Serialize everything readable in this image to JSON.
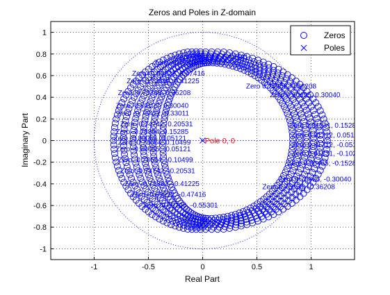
{
  "chart_data": {
    "type": "scatter",
    "title": "Zeros and Poles in Z-domain",
    "xlabel": "Real Part",
    "ylabel": "Imaginary Part",
    "xlim": [
      -1.4,
      1.4
    ],
    "ylim": [
      -1.1,
      1.1
    ],
    "xticks": [
      "-1",
      "-0.5",
      "0",
      "0.5",
      "1"
    ],
    "yticks": [
      "-1",
      "-0.8",
      "-0.6",
      "-0.4",
      "-0.2",
      "0",
      "0.2",
      "0.4",
      "0.6",
      "0.8",
      "1"
    ],
    "grid": true,
    "legend_position": "top-right",
    "legend": [
      {
        "label": "Zeros",
        "marker": "o"
      },
      {
        "label": "Poles",
        "marker": "x"
      }
    ],
    "series": [
      {
        "name": "Zeros",
        "marker": "o",
        "color": "#0000ff",
        "description": "dense band of zeros between an inner and outer ellipse-like ring",
        "ring_samples": [
          {
            "x": -0.8,
            "y": 0.0
          },
          {
            "x": -0.75,
            "y": 0.33
          },
          {
            "x": -0.6,
            "y": 0.6
          },
          {
            "x": -0.3,
            "y": 0.78
          },
          {
            "x": 0.2,
            "y": 0.82
          },
          {
            "x": 0.6,
            "y": 0.82
          },
          {
            "x": 0.9,
            "y": 0.8
          },
          {
            "x": 1.1,
            "y": 0.6
          },
          {
            "x": 1.15,
            "y": 0.0
          },
          {
            "x": 1.1,
            "y": -0.6
          },
          {
            "x": 0.9,
            "y": -0.8
          },
          {
            "x": 0.2,
            "y": -0.82
          },
          {
            "x": -0.3,
            "y": -0.78
          },
          {
            "x": -0.6,
            "y": -0.6
          },
          {
            "x": -0.75,
            "y": -0.33
          }
        ]
      },
      {
        "name": "Poles",
        "marker": "x",
        "color": "#ff0000",
        "points": [
          {
            "x": 0,
            "y": 0
          }
        ]
      }
    ],
    "unit_circle": {
      "center": [
        0,
        0
      ],
      "radius": 1,
      "style": "dotted",
      "color": "#0000ff"
    },
    "annotations": {
      "pole_label": {
        "text": "Pole 0, 0",
        "x": 0.02,
        "y": 0.0,
        "color": "#ff0000"
      },
      "zero_labels_upper": [
        "Zero -0.75768, 0.36208",
        "Zero -0.80122, 0.30040",
        "Zero -0.76422, 0.33011",
        "Zero -0.74742, 0.20531",
        "Zero -0.78854, 0.15285",
        "Zero -0.78654, 0.10499",
        "Zero -0.80055, 0.05121",
        "Zero -0.72862, 0.41225",
        "Zero -0.69222, 0.47416",
        "Zero -0.60226, 0.55301",
        "Zero -0.52315, 0.62431",
        "Zero 0.75658, 0.36208",
        "Zero 0.80495, 0.30040",
        "Zero 0.81231, 0.15285",
        "Zero 0.81712, 0.05122"
      ],
      "zero_labels_lower": [
        "Zero 0.81712, -0.05122",
        "Zero 0.81231, -0.10204",
        "Zero 0.80455, -0.15285",
        "Zero 0.78886, -0.30040",
        "Zero 0.75658, -0.36208",
        "Zero -0.80055, -0.05121",
        "Zero -0.78654, -0.10499",
        "Zero -0.74742, -0.20531",
        "Zero -0.72862, -0.41225",
        "Zero -0.69222, -0.47416",
        "Zero -0.60226, -0.55301"
      ]
    }
  }
}
